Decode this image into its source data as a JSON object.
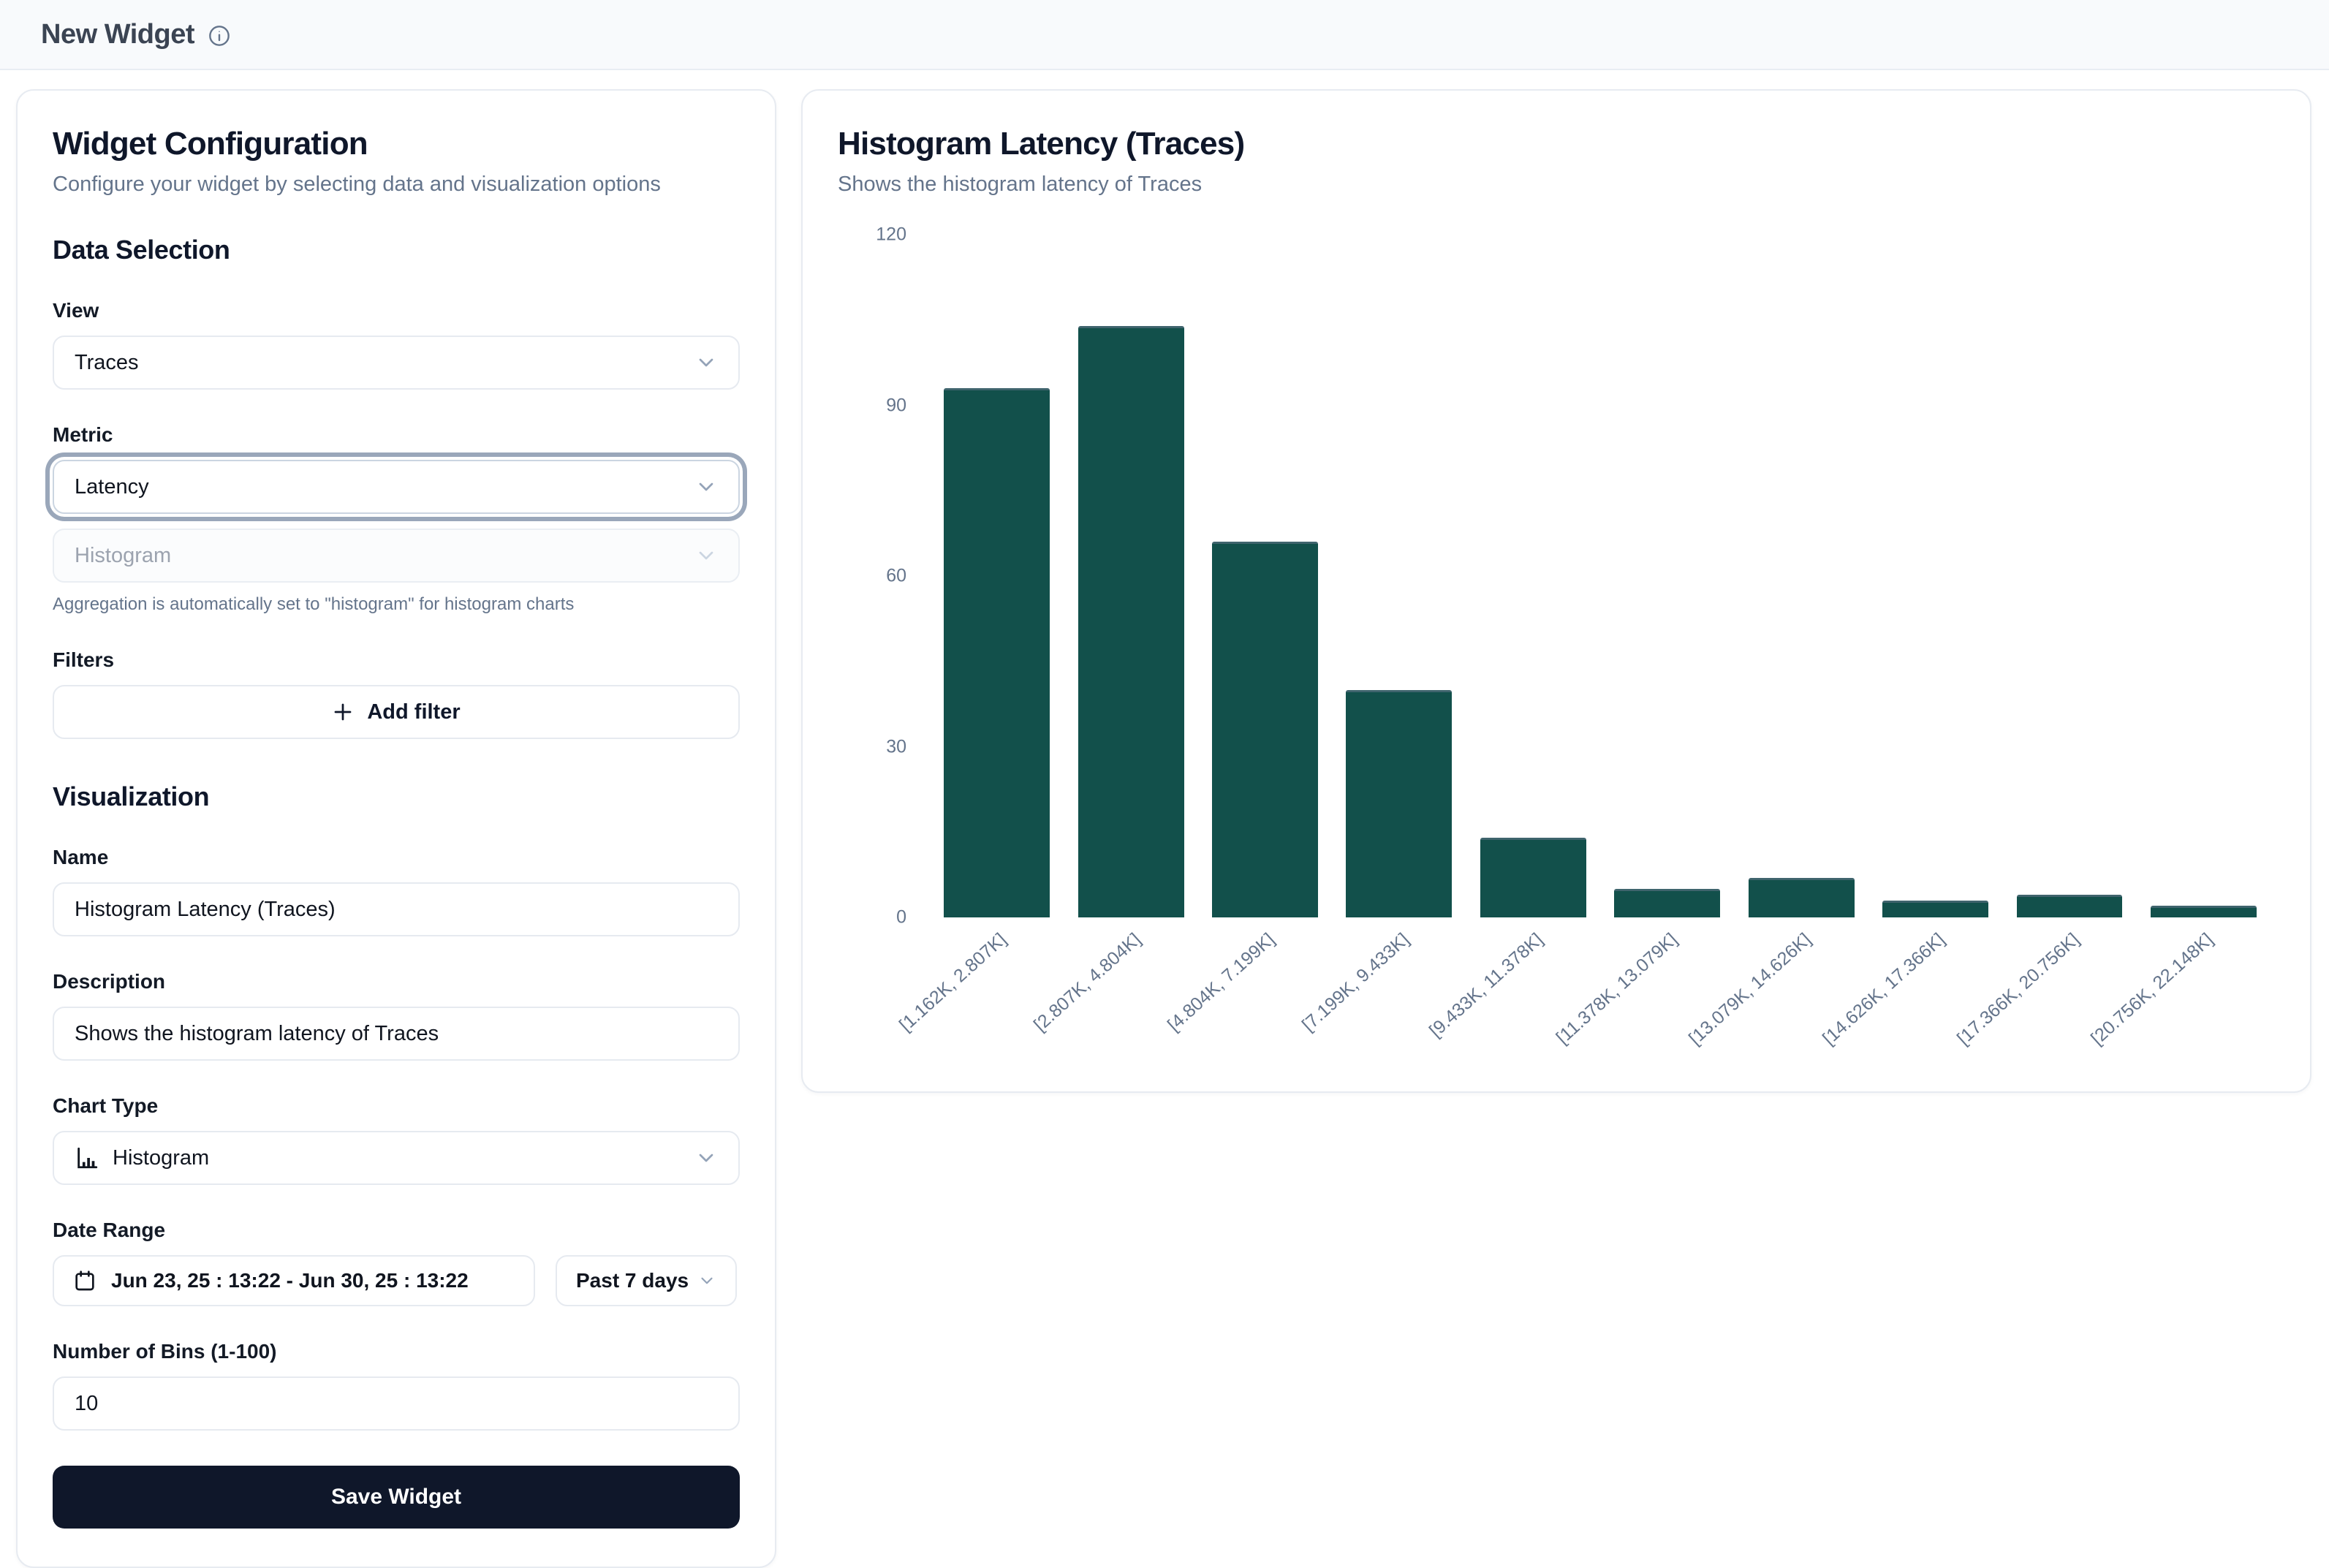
{
  "header": {
    "title": "New Widget"
  },
  "config_panel": {
    "title": "Widget Configuration",
    "subtitle": "Configure your widget by selecting data and visualization options",
    "data_selection": {
      "heading": "Data Selection",
      "view_label": "View",
      "view_value": "Traces",
      "metric_label": "Metric",
      "metric_value": "Latency",
      "aggregation_value": "Histogram",
      "aggregation_help": "Aggregation is automatically set to \"histogram\" for histogram charts",
      "filters_label": "Filters",
      "add_filter_label": "Add filter"
    },
    "visualization": {
      "heading": "Visualization",
      "name_label": "Name",
      "name_value": "Histogram Latency (Traces)",
      "description_label": "Description",
      "description_value": "Shows the histogram latency of Traces",
      "chart_type_label": "Chart Type",
      "chart_type_value": "Histogram",
      "date_range_label": "Date Range",
      "date_range_value": "Jun 23, 25 : 13:22 - Jun 30, 25 : 13:22",
      "date_preset_value": "Past 7 days",
      "bins_label": "Number of Bins (1-100)",
      "bins_value": "10",
      "save_label": "Save Widget"
    }
  },
  "chart_panel": {
    "title": "Histogram Latency (Traces)",
    "subtitle": "Shows the histogram latency of Traces"
  },
  "chart_data": {
    "type": "bar",
    "title": "Histogram Latency (Traces)",
    "xlabel": "",
    "ylabel": "",
    "categories": [
      "[1.162K, 2.807K]",
      "[2.807K, 4.804K]",
      "[4.804K, 7.199K]",
      "[7.199K, 9.433K]",
      "[9.433K, 11.378K]",
      "[11.378K, 13.079K]",
      "[13.079K, 14.626K]",
      "[14.626K, 17.366K]",
      "[17.366K, 20.756K]",
      "[20.756K, 22.148K]"
    ],
    "values": [
      93,
      104,
      66,
      40,
      14,
      5,
      7,
      3,
      4,
      2
    ],
    "ylim": [
      0,
      120
    ],
    "yticks": [
      0,
      30,
      60,
      90,
      120
    ],
    "grid": false,
    "legend": false,
    "bar_color": "#12504b"
  },
  "colors": {
    "accent_bar": "#12504b",
    "save_button_bg": "#0f172a",
    "header_bg": "#f8fafc",
    "card_border": "#e7ebf1",
    "muted_text": "#64748b",
    "focus_ring": "#9aa7ba"
  }
}
